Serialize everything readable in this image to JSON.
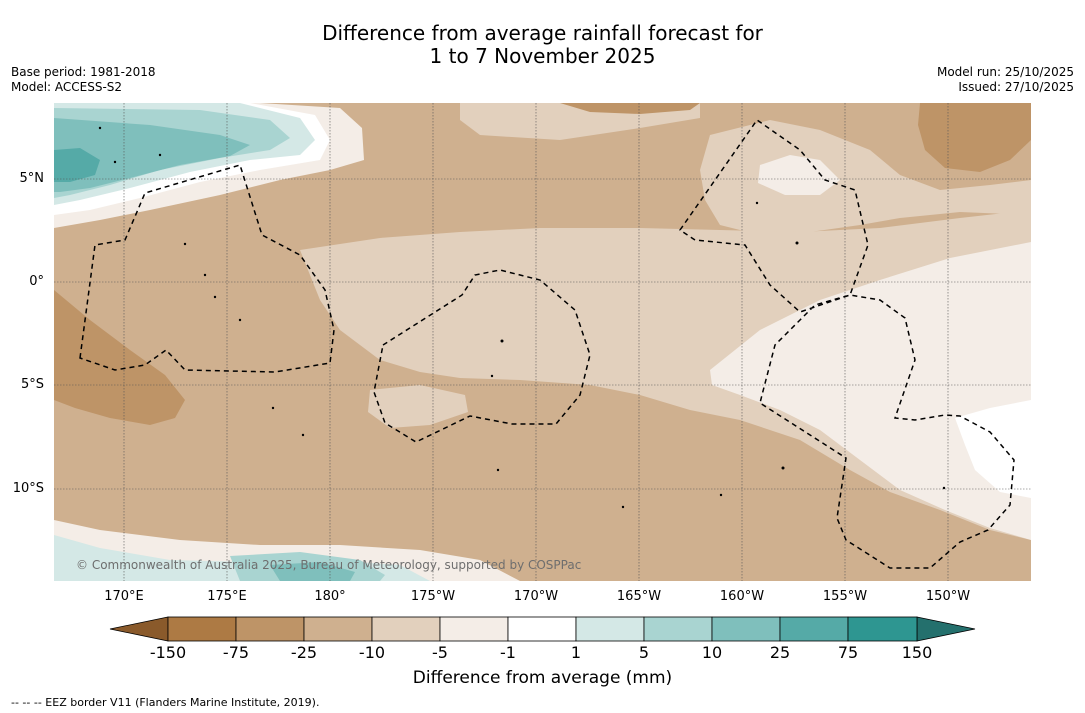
{
  "title": {
    "line1": "Difference from average rainfall forecast for",
    "line2": "1 to 7 November 2025"
  },
  "meta": {
    "base_period": "Base period: 1981-2018",
    "model": "Model: ACCESS-S2",
    "model_run": "Model run: 25/10/2025",
    "issued": "Issued: 27/10/2025"
  },
  "map": {
    "lat_labels": [
      "5°N",
      "0°",
      "5°S",
      "10°S"
    ],
    "lon_labels": [
      "170°E",
      "175°E",
      "180°",
      "175°W",
      "170°W",
      "165°W",
      "160°W",
      "155°W",
      "150°W"
    ],
    "copyright": "© Commonwealth of Australia 2025, Bureau of Meteorology, supported by COSPPac",
    "dominant_anomaly_range_mm": "-25 to -5"
  },
  "colorbar": {
    "title": "Difference from average (mm)",
    "ticks": [
      "-150",
      "-75",
      "-25",
      "-10",
      "-5",
      "-1",
      "1",
      "5",
      "10",
      "25",
      "75",
      "150"
    ],
    "colors": {
      "below_min": "#8a5a2b",
      "bins": [
        "#ad7a44",
        "#be9467",
        "#cfb08f",
        "#e2d0bd",
        "#f4ede7",
        "#ffffff",
        "#d4e8e6",
        "#a9d4d1",
        "#7fbfbc",
        "#55aaa7",
        "#2e9691"
      ],
      "above_max": "#24706d"
    }
  },
  "footnote": "-- -- -- EEZ border V11 (Flanders Marine Institute, 2019)."
}
